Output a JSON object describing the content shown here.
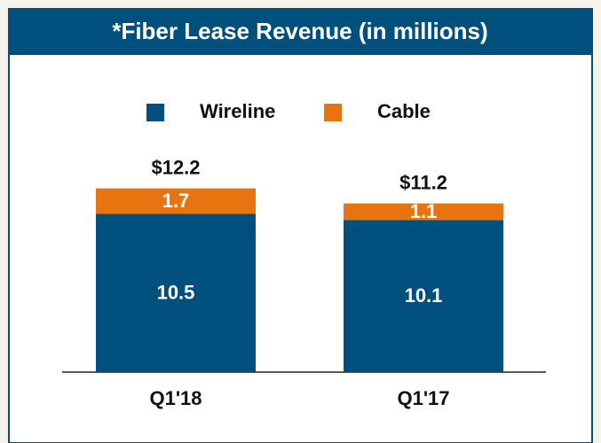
{
  "chart_data": {
    "type": "stacked_bar",
    "title": "*Fiber Lease Revenue (in millions)",
    "categories": [
      "Q1'18",
      "Q1'17"
    ],
    "series": [
      {
        "name": "Wireline",
        "color": "#00507d",
        "values": [
          10.5,
          10.1
        ]
      },
      {
        "name": "Cable",
        "color": "#e8740f",
        "values": [
          1.7,
          1.1
        ]
      }
    ],
    "total_labels": [
      "$12.2",
      "$11.2"
    ],
    "legend": "top"
  }
}
